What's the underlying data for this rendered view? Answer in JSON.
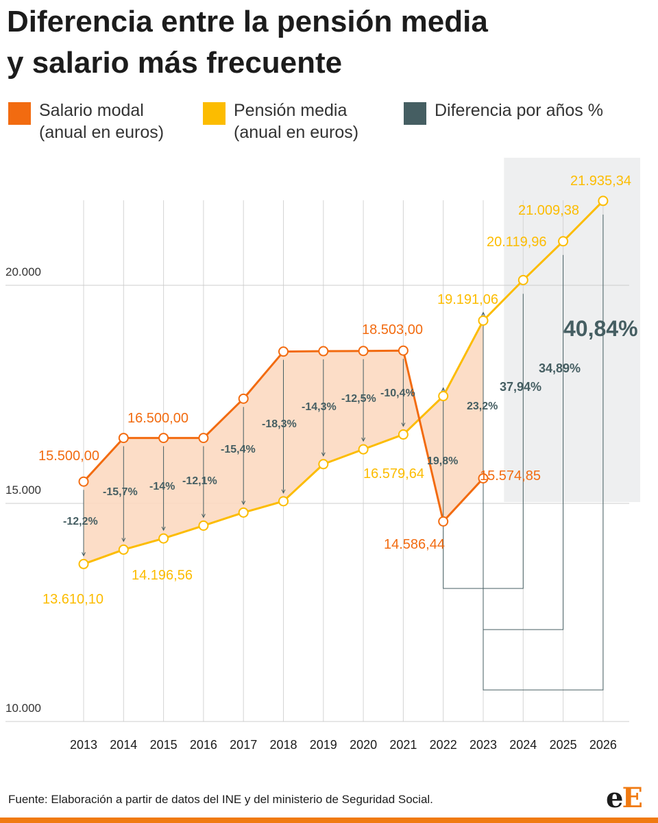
{
  "title_line1": "Diferencia entre la pensión media",
  "title_line2": "y salario más frecuente",
  "legend": [
    {
      "line1": "Salario modal",
      "line2": "(anual en euros)",
      "color": "#f26b10"
    },
    {
      "line1": "Pensión media",
      "line2": "(anual en euros)",
      "color": "#fcbc00"
    },
    {
      "line1": "Diferencia por años %",
      "line2": "",
      "color": "#455e62"
    }
  ],
  "footer": "Fuente: Elaboración a partir de datos del INE y del ministerio de Seguridad Social.",
  "logo": {
    "part1": "e",
    "part2": "E"
  },
  "chart_data": {
    "type": "line",
    "x": [
      "2013",
      "2014",
      "2015",
      "2016",
      "2017",
      "2018",
      "2019",
      "2020",
      "2021",
      "2022",
      "2023",
      "2024",
      "2025",
      "2026"
    ],
    "yticks": [
      {
        "value": 10000,
        "label": "10.000"
      },
      {
        "value": 15000,
        "label": "15.000"
      },
      {
        "value": 20000,
        "label": "20.000"
      }
    ],
    "ylim": [
      9700,
      22900
    ],
    "projection_start": "2024",
    "series": [
      {
        "name": "Salario modal",
        "color": "#f26b10",
        "values": [
          15500,
          16500,
          16500,
          16500,
          17400,
          18480,
          18490,
          18495,
          18503,
          14586.44,
          15574.85,
          null,
          null,
          null
        ],
        "labels": [
          {
            "index": 0,
            "text": "15.500,00"
          },
          {
            "index": 1,
            "text": "16.500,00"
          },
          {
            "index": 8,
            "text": "18.503,00"
          },
          {
            "index": 9,
            "text": "14.586,44"
          },
          {
            "index": 10,
            "text": "15.574,85"
          }
        ]
      },
      {
        "name": "Pensión media",
        "color": "#fcbc00",
        "values": [
          13610.1,
          13940,
          14196.56,
          14490,
          14790,
          15050,
          15900,
          16240,
          16579.64,
          17460,
          19191.06,
          20119.96,
          21009.38,
          21935.34
        ],
        "labels": [
          {
            "index": 0,
            "text": "13.610,10"
          },
          {
            "index": 2,
            "text": "14.196,56"
          },
          {
            "index": 8,
            "text": "16.579,64"
          },
          {
            "index": 10,
            "text": "19.191,06"
          },
          {
            "index": 11,
            "text": "20.119,96"
          },
          {
            "index": 12,
            "text": "21.009,38"
          },
          {
            "index": 13,
            "text": "21.935,34"
          }
        ]
      }
    ],
    "differences": [
      "-12,2%",
      "-15,7%",
      "-14%",
      "-12,1%",
      "-15,4%",
      "-18,3%",
      "-14,3%",
      "-12,5%",
      "-10,4%",
      "19,8%",
      "23,2%",
      "37,94%",
      "34,89%",
      "40,84%"
    ]
  }
}
